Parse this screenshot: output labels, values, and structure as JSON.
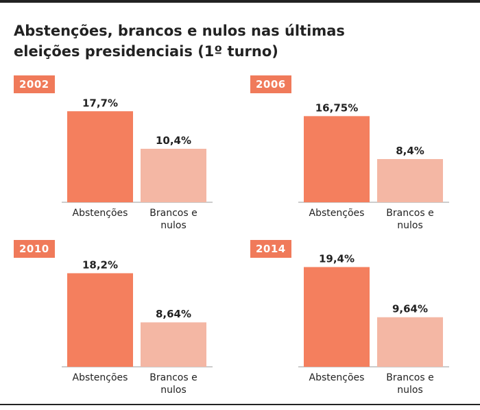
{
  "title_line1": "Abstenções, brancos e nulos nas últimas",
  "title_line2": "eleições presidenciais (1º turno)",
  "colors": {
    "abstencoes": "#f47f5e",
    "brancos_nulos": "#f4b7a4",
    "badge": "#f07a5a",
    "axis": "#999999"
  },
  "chart_data": [
    {
      "type": "bar",
      "title": "2002",
      "categories": [
        "Abstenções",
        "Brancos e nulos"
      ],
      "values": [
        17.7,
        10.4
      ],
      "value_labels": [
        "17,7%",
        "10,4%"
      ],
      "ylim": [
        0,
        20
      ]
    },
    {
      "type": "bar",
      "title": "2006",
      "categories": [
        "Abstenções",
        "Brancos e nulos"
      ],
      "values": [
        16.75,
        8.4
      ],
      "value_labels": [
        "16,75%",
        "8,4%"
      ],
      "ylim": [
        0,
        20
      ]
    },
    {
      "type": "bar",
      "title": "2010",
      "categories": [
        "Abstenções",
        "Brancos e nulos"
      ],
      "values": [
        18.2,
        8.64
      ],
      "value_labels": [
        "18,2%",
        "8,64%"
      ],
      "ylim": [
        0,
        20
      ]
    },
    {
      "type": "bar",
      "title": "2014",
      "categories": [
        "Abstenções",
        "Brancos e nulos"
      ],
      "values": [
        19.4,
        9.64
      ],
      "value_labels": [
        "19,4%",
        "9,64%"
      ],
      "ylim": [
        0,
        20
      ]
    }
  ]
}
